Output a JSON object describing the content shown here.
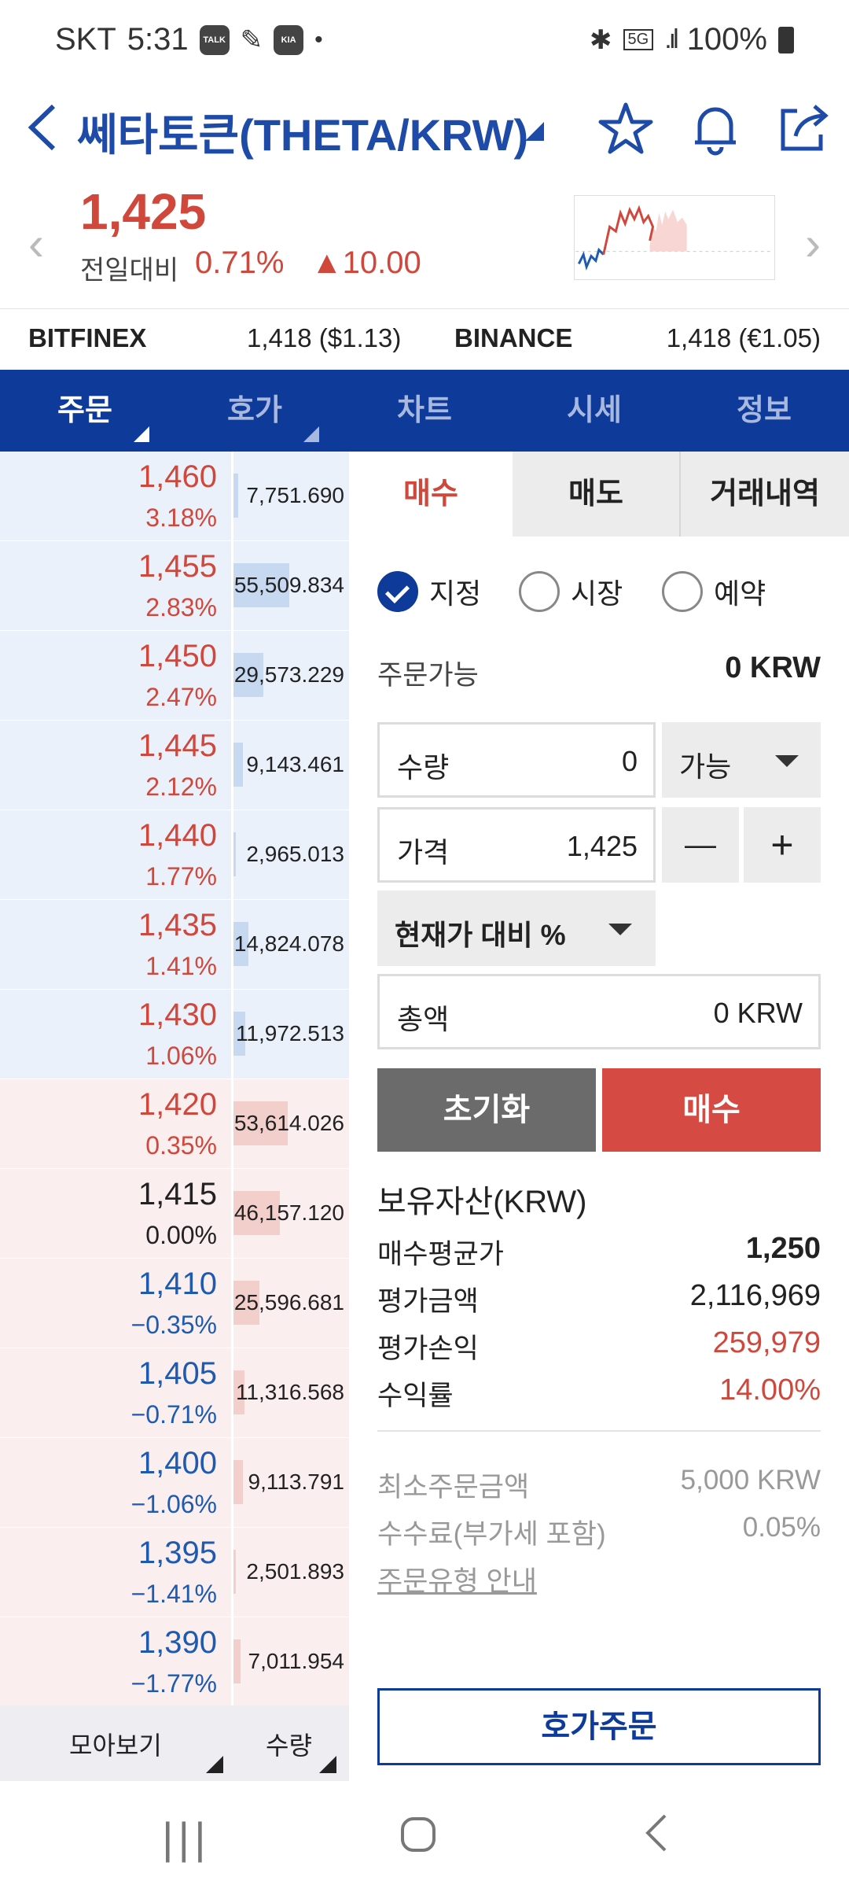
{
  "status": {
    "carrier": "SKT",
    "time": "5:31",
    "icons": [
      "talk-icon",
      "edit-icon",
      "kia-connect-icon",
      "dot-icon"
    ],
    "right_icons": [
      "bluetooth-icon",
      "5g-icon",
      "signal-icon"
    ],
    "battery": "100%"
  },
  "header": {
    "back": "<",
    "title": "쎄타토큰(THETA/KRW)"
  },
  "price": {
    "current": "1,425",
    "diff_label": "전일대비",
    "diff_pct": "0.71%",
    "diff_amt": "▲10.00"
  },
  "exchanges": [
    {
      "name": "BITFINEX",
      "value": "1,418 ($1.13)"
    },
    {
      "name": "BINANCE",
      "value": "1,418 (€1.05)"
    }
  ],
  "tabs": [
    "주문",
    "호가",
    "차트",
    "시세",
    "정보"
  ],
  "orderbook": {
    "asks": [
      {
        "price": "1,460",
        "rate": "3.18%",
        "qty": "7,751.690",
        "fill": 0.06
      },
      {
        "price": "1,455",
        "rate": "2.83%",
        "qty": "55,509.834",
        "fill": 0.71
      },
      {
        "price": "1,450",
        "rate": "2.47%",
        "qty": "29,573.229",
        "fill": 0.38
      },
      {
        "price": "1,445",
        "rate": "2.12%",
        "qty": "9,143.461",
        "fill": 0.12
      },
      {
        "price": "1,440",
        "rate": "1.77%",
        "qty": "2,965.013",
        "fill": 0.03
      },
      {
        "price": "1,435",
        "rate": "1.41%",
        "qty": "14,824.078",
        "fill": 0.19
      },
      {
        "price": "1,430",
        "rate": "1.06%",
        "qty": "11,972.513",
        "fill": 0.15
      }
    ],
    "bids": [
      {
        "price": "1,420",
        "rate": "0.35%",
        "qty": "53,614.026",
        "fill": 0.69,
        "dir": "up"
      },
      {
        "price": "1,415",
        "rate": "0.00%",
        "qty": "46,157.120",
        "fill": 0.59,
        "dir": "flat"
      },
      {
        "price": "1,410",
        "rate": "−0.35%",
        "qty": "25,596.681",
        "fill": 0.33,
        "dir": "down"
      },
      {
        "price": "1,405",
        "rate": "−0.71%",
        "qty": "11,316.568",
        "fill": 0.14,
        "dir": "down"
      },
      {
        "price": "1,400",
        "rate": "−1.06%",
        "qty": "9,113.791",
        "fill": 0.12,
        "dir": "down"
      },
      {
        "price": "1,395",
        "rate": "−1.41%",
        "qty": "2,501.893",
        "fill": 0.03,
        "dir": "down"
      },
      {
        "price": "1,390",
        "rate": "−1.77%",
        "qty": "7,011.954",
        "fill": 0.09,
        "dir": "down"
      }
    ],
    "footer": {
      "view": "모아보기",
      "qty": "수량"
    }
  },
  "order": {
    "tabs": [
      "매수",
      "매도",
      "거래내역"
    ],
    "types": [
      "지정",
      "시장",
      "예약"
    ],
    "available_label": "주문가능",
    "available_value": "0 KRW",
    "qty_label": "수량",
    "qty_value": "0",
    "qty_select": "가능",
    "price_label": "가격",
    "price_value": "1,425",
    "minus": "—",
    "plus": "+",
    "pct_select": "현재가 대비 %",
    "total_label": "총액",
    "total_value": "0 KRW",
    "reset": "초기화",
    "buy": "매수"
  },
  "assets": {
    "title": "보유자산(KRW)",
    "rows": [
      {
        "label": "매수평균가",
        "value": "1,250"
      },
      {
        "label": "평가금액",
        "value": "2,116,969"
      },
      {
        "label": "평가손익",
        "value": "259,979"
      },
      {
        "label": "수익률",
        "value": "14.00%"
      }
    ]
  },
  "info": {
    "min_label": "최소주문금액",
    "min_value": "5,000 KRW",
    "fee_label": "수수료(부가세 포함)",
    "fee_value": "0.05%",
    "guide": "주문유형 안내"
  },
  "hoga_order": "호가주문",
  "colors": {
    "brand": "#0e3b99",
    "up": "#d0473c",
    "down": "#1e5bb0"
  }
}
